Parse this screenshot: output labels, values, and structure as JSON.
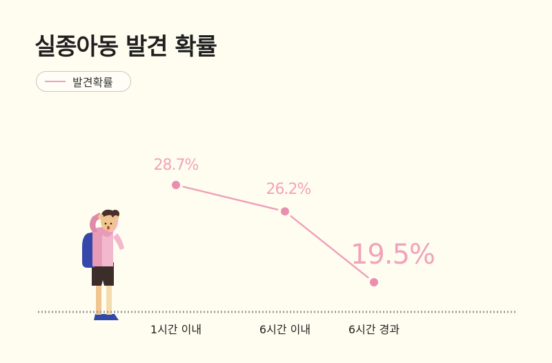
{
  "title": "실종아동 발견 확률",
  "legend": {
    "label": "발견확률",
    "color": "#ee9fb8"
  },
  "colors": {
    "line": "#eea2bb",
    "point": "#e98fad",
    "label": "#f1a3bb",
    "axis": "#9a9a9a",
    "text": "#222222"
  },
  "chart_data": {
    "type": "line",
    "title": "실종아동 발견 확률",
    "categories": [
      "1시간 이내",
      "6시간 이내",
      "6시간 경과"
    ],
    "series": [
      {
        "name": "발견확률",
        "values": [
          28.7,
          26.2,
          19.5
        ],
        "labels": [
          "28.7%",
          "26.2%",
          "19.5%"
        ]
      }
    ],
    "xlabel": "",
    "ylabel": "",
    "grid": false,
    "legend_position": "top-left"
  }
}
